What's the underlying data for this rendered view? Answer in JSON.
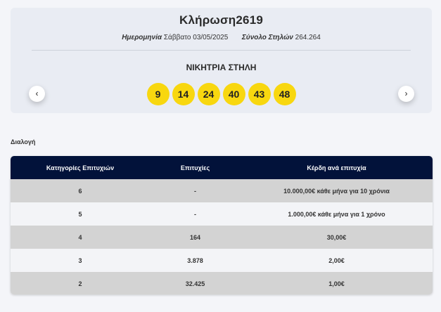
{
  "draw": {
    "title": "Κλήρωση2619",
    "date_label": "Ημερομηνία",
    "date_value": "Σάββατο 03/05/2025",
    "columns_label": "Σύνολο Στηλών",
    "columns_value": "264.264",
    "winning_title": "ΝΙΚΗΤΡΙΑ ΣΤΗΛΗ",
    "numbers": [
      "9",
      "14",
      "24",
      "40",
      "43",
      "48"
    ],
    "ball_color": "#f8d70f",
    "prev_icon": "‹",
    "next_icon": "›"
  },
  "choose_label": "Διαλογή",
  "table": {
    "header_color": "#02123a",
    "headers": [
      "Κατηγορίες Επιτυχιών",
      "Επιτυχίες",
      "Κέρδη ανά επιτυχία"
    ],
    "rows": [
      [
        "6",
        "-",
        "10.000,00€ κάθε μήνα για 10 χρόνια"
      ],
      [
        "5",
        "-",
        "1.000,00€ κάθε μήνα για 1 χρόνο"
      ],
      [
        "4",
        "164",
        "30,00€"
      ],
      [
        "3",
        "3.878",
        "2,00€"
      ],
      [
        "2",
        "32.425",
        "1,00€"
      ]
    ]
  }
}
